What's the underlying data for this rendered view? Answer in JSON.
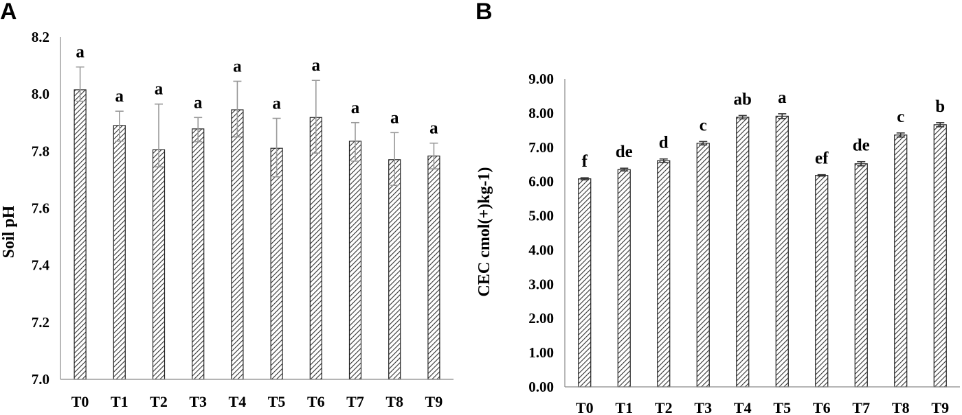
{
  "chart_data": [
    {
      "panel": "A",
      "type": "bar",
      "title": "",
      "xlabel": "",
      "ylabel": "Soil pH",
      "ylim": [
        7.0,
        8.2
      ],
      "yticks": [
        "7.0",
        "7.2",
        "7.4",
        "7.6",
        "7.8",
        "8.0",
        "8.2"
      ],
      "categories": [
        "T0",
        "T1",
        "T2",
        "T3",
        "T4",
        "T5",
        "T6",
        "T7",
        "T8",
        "T9"
      ],
      "values": [
        8.015,
        7.89,
        7.805,
        7.878,
        7.945,
        7.81,
        7.918,
        7.835,
        7.77,
        7.783
      ],
      "error_plus": [
        0.08,
        0.05,
        0.16,
        0.04,
        0.1,
        0.105,
        0.13,
        0.065,
        0.095,
        0.045
      ],
      "error_minus": [
        0.04,
        0.055,
        0.06,
        0.045,
        0.095,
        0.1,
        0.125,
        0.07,
        0.09,
        0.045
      ],
      "letters": [
        "a",
        "a",
        "a",
        "a",
        "a",
        "a",
        "a",
        "a",
        "a",
        "a"
      ],
      "grid": false
    },
    {
      "panel": "B",
      "type": "bar",
      "title": "",
      "xlabel": "",
      "ylabel": "CEC cmol(+)kg-1)",
      "ylim": [
        0,
        9
      ],
      "yticks": [
        "0.00",
        "1.00",
        "2.00",
        "3.00",
        "4.00",
        "5.00",
        "6.00",
        "7.00",
        "8.00",
        "9.00"
      ],
      "categories": [
        "T0",
        "T1",
        "T2",
        "T3",
        "T4",
        "T5",
        "T6",
        "T7",
        "T8",
        "T9"
      ],
      "values": [
        6.08,
        6.35,
        6.61,
        7.12,
        7.88,
        7.91,
        6.18,
        6.52,
        7.36,
        7.66
      ],
      "error": [
        0.03,
        0.04,
        0.05,
        0.05,
        0.05,
        0.07,
        0.02,
        0.06,
        0.06,
        0.06
      ],
      "letters": [
        "f",
        "de",
        "d",
        "c",
        "ab",
        "a",
        "ef",
        "de",
        "c",
        "b"
      ],
      "grid": false
    }
  ]
}
